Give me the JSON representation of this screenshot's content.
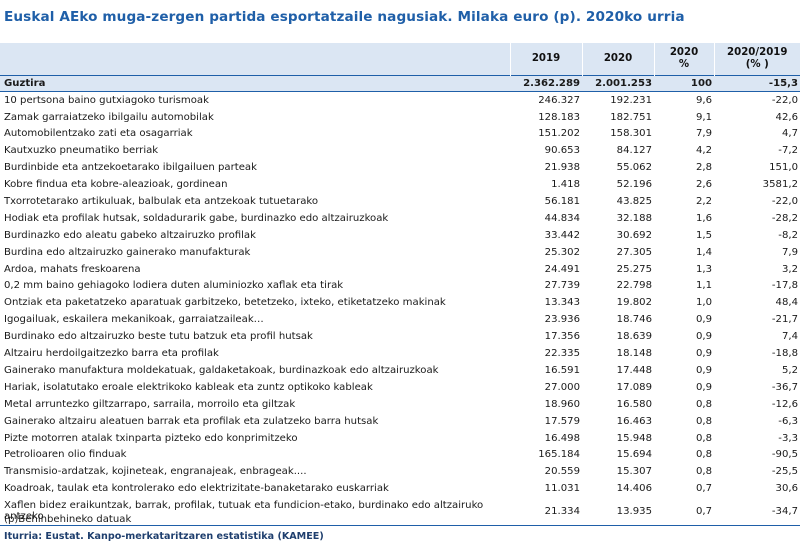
{
  "title": "Euskal AEko muga-zergen partida esportatzaile nagusiak. Milaka euro (p). 2020ko urria",
  "headers": {
    "label": "",
    "y2019": "2019",
    "y2020": "2020",
    "pct_line1": "2020",
    "pct_line2": "%",
    "change_line1": "2020/2019",
    "change_line2": "(% )"
  },
  "total": {
    "label": "Guztira",
    "v2019": "2.362.289",
    "v2020": "2.001.253",
    "pct": "100",
    "change": "-15,3"
  },
  "rows": [
    {
      "label": "10 pertsona baino gutxiagoko turismoak",
      "v2019": "246.327",
      "v2020": "192.231",
      "pct": "9,6",
      "change": "-22,0"
    },
    {
      "label": "Zamak garraiatzeko ibilgailu automobilak",
      "v2019": "128.183",
      "v2020": "182.751",
      "pct": "9,1",
      "change": "42,6"
    },
    {
      "label": "Automobilentzako zati eta osagarriak",
      "v2019": "151.202",
      "v2020": "158.301",
      "pct": "7,9",
      "change": "4,7"
    },
    {
      "label": "Kautxuzko pneumatiko berriak",
      "v2019": "90.653",
      "v2020": "84.127",
      "pct": "4,2",
      "change": "-7,2"
    },
    {
      "label": "Burdinbide eta antzekoetarako ibilgailuen parteak",
      "v2019": "21.938",
      "v2020": "55.062",
      "pct": "2,8",
      "change": "151,0"
    },
    {
      "label": "Kobre findua eta kobre-aleazioak, gordinean",
      "v2019": "1.418",
      "v2020": "52.196",
      "pct": "2,6",
      "change": "3581,2"
    },
    {
      "label": "Txorrotetarako artikuluak, balbulak eta antzekoak tutuetarako",
      "v2019": "56.181",
      "v2020": "43.825",
      "pct": "2,2",
      "change": "-22,0"
    },
    {
      "label": "Hodiak eta profilak hutsak, soldadurarik gabe, burdinazko edo altzairuzkoak",
      "v2019": "44.834",
      "v2020": "32.188",
      "pct": "1,6",
      "change": "-28,2"
    },
    {
      "label": "Burdinazko edo aleatu gabeko altzairuzko profilak",
      "v2019": "33.442",
      "v2020": "30.692",
      "pct": "1,5",
      "change": "-8,2"
    },
    {
      "label": "Burdina edo altzairuzko gainerako manufakturak",
      "v2019": "25.302",
      "v2020": "27.305",
      "pct": "1,4",
      "change": "7,9"
    },
    {
      "label": "Ardoa, mahats freskoarena",
      "v2019": "24.491",
      "v2020": "25.275",
      "pct": "1,3",
      "change": "3,2"
    },
    {
      "label": "0,2 mm baino gehiagoko lodiera duten aluminiozko xaflak eta tirak",
      "v2019": "27.739",
      "v2020": "22.798",
      "pct": "1,1",
      "change": "-17,8"
    },
    {
      "label": "Ontziak eta paketatzeko aparatuak garbitzeko, betetzeko, ixteko, etiketatzeko makinak",
      "v2019": "13.343",
      "v2020": "19.802",
      "pct": "1,0",
      "change": "48,4"
    },
    {
      "label": "Igogailuak, eskailera mekanikoak, garraiatzaileak…",
      "v2019": "23.936",
      "v2020": "18.746",
      "pct": "0,9",
      "change": "-21,7"
    },
    {
      "label": "Burdinako edo altzairuzko beste tutu batzuk eta profil hutsak",
      "v2019": "17.356",
      "v2020": "18.639",
      "pct": "0,9",
      "change": "7,4"
    },
    {
      "label": "Altzairu herdoilgaitzezko barra eta profilak",
      "v2019": "22.335",
      "v2020": "18.148",
      "pct": "0,9",
      "change": "-18,8"
    },
    {
      "label": "Gainerako manufaktura moldekatuak, galdaketakoak, burdinazkoak edo altzairuzkoak",
      "v2019": "16.591",
      "v2020": "17.448",
      "pct": "0,9",
      "change": "5,2"
    },
    {
      "label": "Hariak, isolatutako eroale elektrikoko kableak eta zuntz optikoko kableak",
      "v2019": "27.000",
      "v2020": "17.089",
      "pct": "0,9",
      "change": "-36,7"
    },
    {
      "label": "Metal arruntezko giltzarrapo, sarraila, morroilo eta giltzak",
      "v2019": "18.960",
      "v2020": "16.580",
      "pct": "0,8",
      "change": "-12,6"
    },
    {
      "label": "Gainerako altzairu aleatuen barrak eta profilak eta zulatzeko barra hutsak",
      "v2019": "17.579",
      "v2020": "16.463",
      "pct": "0,8",
      "change": "-6,3"
    },
    {
      "label": "Pizte motorren atalak txinparta pizteko edo konprimitzeko",
      "v2019": "16.498",
      "v2020": "15.948",
      "pct": "0,8",
      "change": "-3,3"
    },
    {
      "label": "Petrolioaren olio finduak",
      "v2019": "165.184",
      "v2020": "15.694",
      "pct": "0,8",
      "change": "-90,5"
    },
    {
      "label": "Transmisio-ardatzak, kojineteak, engranajeak, enbrageak....",
      "v2019": "20.559",
      "v2020": "15.307",
      "pct": "0,8",
      "change": "-25,5"
    },
    {
      "label": "Koadroak, taulak eta kontrolerako edo elektrizitate-banaketarako euskarriak",
      "v2019": "11.031",
      "v2020": "14.406",
      "pct": "0,7",
      "change": "30,6"
    },
    {
      "label": "Xaflen bidez eraikuntzak, barrak, profilak, tutuak eta fundicion-etako, burdinako edo altzairuko antzeko",
      "v2019": "21.334",
      "v2020": "13.935",
      "pct": "0,7",
      "change": "-34,7"
    }
  ],
  "note": "(p)Behinbehineko datuak",
  "source": "Iturria: Eustat. Kanpo-merkataritzaren estatistika (KAMEE)"
}
